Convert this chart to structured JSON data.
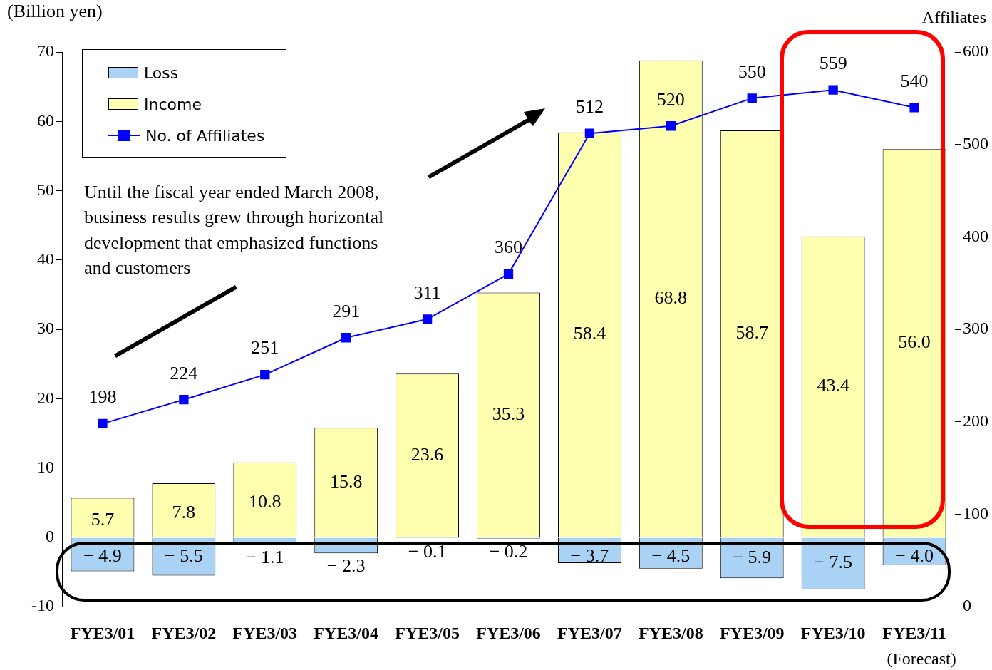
{
  "chart_data": {
    "type": "bar",
    "stacked": true,
    "ylabel": "(Billion yen)",
    "y2label": "Affiliates",
    "categories": [
      "FYE3/01",
      "FYE3/02",
      "FYE3/03",
      "FYE3/04",
      "FYE3/05",
      "FYE3/06",
      "FYE3/07",
      "FYE3/08",
      "FYE3/09",
      "FYE3/10",
      "FYE3/11"
    ],
    "series": [
      {
        "name": "Loss",
        "color": "#a9d2f5",
        "values": [
          -4.9,
          -5.5,
          -1.1,
          -2.3,
          -0.1,
          -0.2,
          -3.7,
          -4.5,
          -5.9,
          -7.5,
          -4.0
        ],
        "value_labels": [
          "− 4.9",
          "− 5.5",
          "− 1.1",
          "− 2.3",
          "− 0.1",
          "− 0.2",
          "− 3.7",
          "− 4.5",
          "− 5.9",
          "− 7.5",
          "− 4.0"
        ]
      },
      {
        "name": "Income",
        "color": "#ffffb0",
        "values": [
          5.7,
          7.8,
          10.8,
          15.8,
          23.6,
          35.3,
          58.4,
          68.8,
          58.7,
          43.4,
          56.0
        ],
        "value_labels": [
          "5.7",
          "7.8",
          "10.8",
          "15.8",
          "23.6",
          "35.3",
          "58.4",
          "68.8",
          "58.7",
          "43.4",
          "56.0"
        ]
      },
      {
        "name": "No. of Affiliates",
        "type": "line",
        "axis": "y2",
        "color": "#0000ff",
        "marker": "square",
        "values": [
          198,
          224,
          251,
          291,
          311,
          360,
          512,
          520,
          550,
          559,
          540
        ],
        "value_labels": [
          "198",
          "224",
          "251",
          "291",
          "311",
          "360",
          "512",
          "520",
          "550",
          "559",
          "540"
        ]
      }
    ],
    "ylim": [
      -10,
      70
    ],
    "yticks": [
      -10,
      0,
      10,
      20,
      30,
      40,
      50,
      60,
      70
    ],
    "y2lim": [
      0,
      600
    ],
    "y2ticks": [
      0,
      100,
      200,
      300,
      400,
      500,
      600
    ],
    "grid": false,
    "legend": "top left",
    "annotations": [
      "Until the fiscal year ended March 2008,\nbusiness results grew through horizontal\ndevelopment that emphasized functions\nand customers",
      "(Forecast)"
    ]
  }
}
